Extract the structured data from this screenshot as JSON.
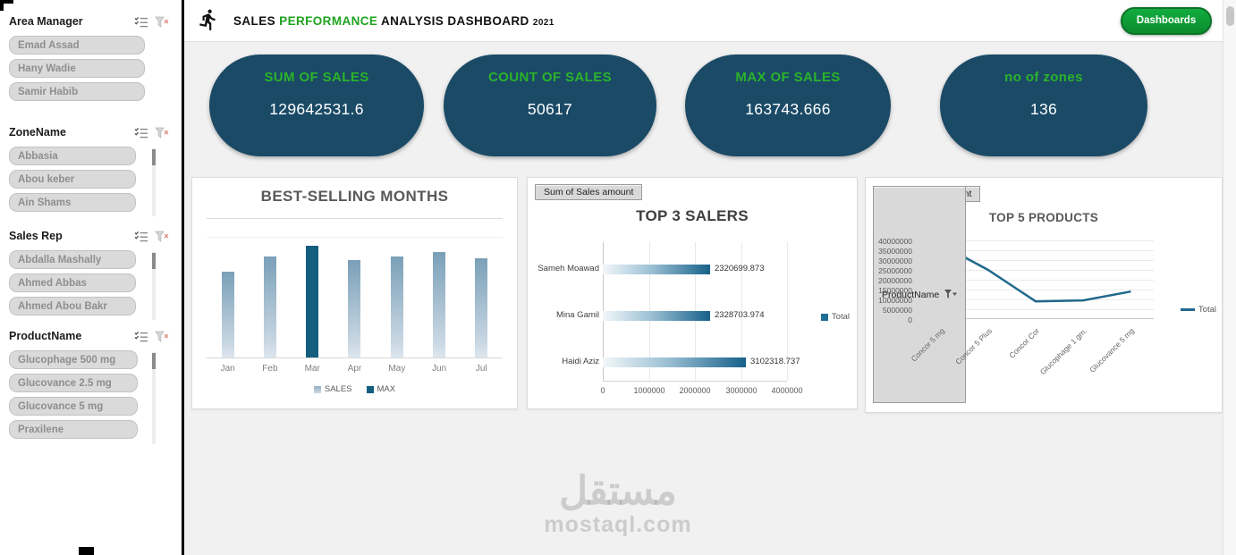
{
  "header": {
    "title": {
      "sales": "SALES",
      "performance": "PERFORMANCE",
      "analysis": "ANALYSIS DASHBOARD",
      "year": "2021"
    },
    "dashboards_button": "Dashboards"
  },
  "sidebar": {
    "slicers": [
      {
        "title": "Area Manager",
        "items": [
          "Emad Assad",
          "Hany Wadie",
          "Samir Habib"
        ],
        "has_scrollbar": false
      },
      {
        "title": "ZoneName",
        "items": [
          "Abbasia",
          "Abou keber",
          "Ain Shams"
        ],
        "has_scrollbar": true
      },
      {
        "title": "Sales Rep",
        "items": [
          "Abdalla Mashally",
          "Ahmed Abbas",
          "Ahmed Abou Bakr"
        ],
        "has_scrollbar": true
      },
      {
        "title": "ProductName",
        "items": [
          "Glucophage 500 mg",
          "Glucovance 2.5 mg",
          "Glucovance 5 mg",
          "Praxilene"
        ],
        "has_scrollbar": true
      }
    ]
  },
  "kpis": [
    {
      "label": "SUM OF SALES",
      "value": "129642531.6"
    },
    {
      "label": "COUNT OF SALES",
      "value": "50617"
    },
    {
      "label": "MAX OF SALES",
      "value": "163743.666"
    },
    {
      "label": "no of zones",
      "value": "136"
    }
  ],
  "watermark": {
    "word": "مستقل",
    "site": "mostaql.com"
  },
  "colors": {
    "navy": "#1a4a66",
    "kpi_green": "#2bb32b",
    "title_green": "#1fa31f",
    "button_green": "#0b8a2e",
    "teal": "#20688c",
    "bar_light": "#a9c0d4",
    "bar_dark": "#135e7f"
  },
  "chart_data": [
    {
      "type": "bar",
      "title": "BEST-SELLING MONTHS",
      "categories": [
        "Jan",
        "Feb",
        "Mar",
        "Apr",
        "May",
        "Jun",
        "Jul"
      ],
      "series": [
        {
          "name": "SALES",
          "values": [
            72,
            84,
            93,
            81,
            84,
            88,
            83
          ]
        },
        {
          "name": "MAX",
          "highlight_category": "Mar"
        }
      ],
      "legend": [
        "SALES",
        "MAX"
      ],
      "values_are": "relative bar height percent (value axis unlabeled)",
      "grid": false,
      "legend_position": "bottom"
    },
    {
      "type": "bar",
      "orientation": "horizontal",
      "title": "TOP 3 SALERS",
      "pivot_field_button": "Sum of Sales amount",
      "categories": [
        "Sameh Moawad",
        "Mina Gamil",
        "Haidi Aziz"
      ],
      "values": [
        2320699.873,
        2328703.974,
        3102318.737
      ],
      "data_labels": [
        "2320699.873",
        "2328703.974",
        "3102318.737"
      ],
      "x_ticks": [
        0,
        1000000,
        2000000,
        3000000,
        4000000
      ],
      "xlim": [
        0,
        4000000
      ],
      "legend": [
        "Total"
      ],
      "legend_position": "right",
      "grid": true
    },
    {
      "type": "line",
      "title": "TOP 5 PRODUCTS",
      "pivot_field_button": "Sum of Sales amount",
      "axis_field_button": "ProductName",
      "categories": [
        "Concor 5 mg",
        "Concor 5 Plus",
        "Concor Cor",
        "Glucophage 1 gm.",
        "Glucovance 5 mg"
      ],
      "values": [
        38000000,
        25000000,
        9000000,
        9500000,
        14000000
      ],
      "values_note": "estimated from gridlines",
      "y_ticks": [
        0,
        5000000,
        10000000,
        15000000,
        20000000,
        25000000,
        30000000,
        35000000,
        40000000
      ],
      "ylim": [
        0,
        40000000
      ],
      "legend": [
        "Total"
      ],
      "legend_position": "right",
      "grid": true
    }
  ]
}
